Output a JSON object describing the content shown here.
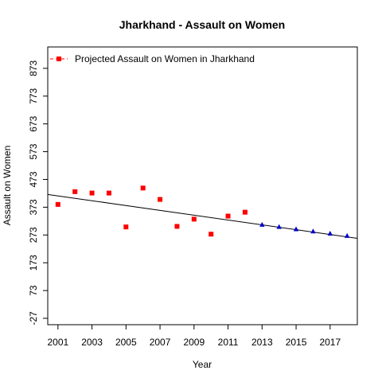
{
  "chart_data": {
    "type": "scatter",
    "title": "Jharkhand  -  Assault on Women",
    "xlabel": "Year",
    "ylabel": "Assault on Women",
    "xlim": [
      2000.4,
      2018.6
    ],
    "ylim": [
      -50,
      950
    ],
    "x_ticks": [
      2001,
      2003,
      2005,
      2007,
      2009,
      2011,
      2013,
      2015,
      2017
    ],
    "y_ticks": [
      -27,
      73,
      173,
      273,
      373,
      473,
      573,
      673,
      773,
      873
    ],
    "series": [
      {
        "name": "",
        "marker": "square",
        "color": "#ff0000",
        "x": [
          2001,
          2002,
          2003,
          2004,
          2005,
          2006,
          2007,
          2008,
          2009,
          2010,
          2011,
          2012
        ],
        "y": [
          383,
          429,
          424,
          424,
          302,
          442,
          401,
          304,
          330,
          276,
          341,
          355
        ]
      },
      {
        "name": "Projected  Assault on Women  in  Jharkhand",
        "marker": "triangle",
        "color": "#0000cd",
        "x": [
          2013,
          2014,
          2015,
          2016,
          2017,
          2018
        ],
        "y": [
          310,
          302,
          294,
          286,
          278,
          270
        ]
      }
    ],
    "trend_line": {
      "x": [
        2000.4,
        2018.6
      ],
      "y": [
        419,
        261
      ],
      "color": "#000000"
    },
    "legend": {
      "entries": [
        "Projected  Assault on Women  in  Jharkhand"
      ],
      "placement": "top-left",
      "marker_color": "#ff0000",
      "line_color": "#ff0000"
    },
    "grid": false
  }
}
